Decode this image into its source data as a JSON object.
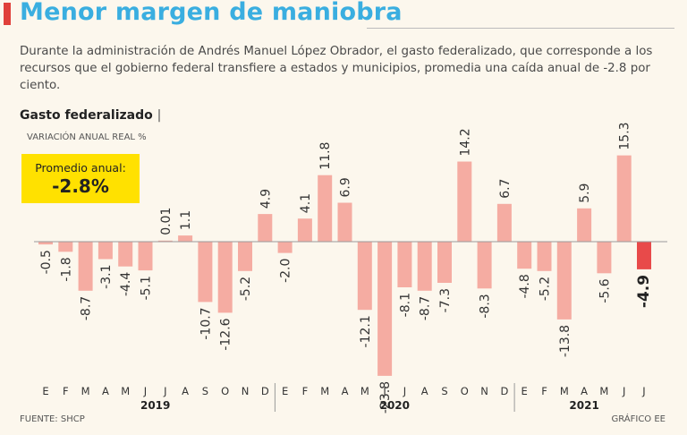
{
  "header": {
    "title": "Menor margen de maniobra",
    "description": "Durante la administración de Andrés Manuel López Obrador, el gasto federalizado, que corresponde a los recursos que el gobierno federal transfiere a estados y municipios, promedia una caída anual de -2.8 por ciento."
  },
  "chart_header": {
    "title": "Gasto federalizado",
    "separator": "|",
    "units": "VARIACIÓN ANUAL REAL %"
  },
  "average": {
    "label": "Promedio anual:",
    "value": "-2.8%"
  },
  "footer": {
    "source": "FUENTE: SHCP",
    "credit": "GRÁFICO EE"
  },
  "colors": {
    "bar": "#f5aca2",
    "highlight": "#e84a4a",
    "title": "#3aaee0",
    "box": "#ffe100"
  },
  "chart_data": {
    "type": "bar",
    "title": "Gasto federalizado",
    "ylabel": "VARIACIÓN ANUAL REAL %",
    "xlabel": "",
    "ylim": [
      -26,
      17
    ],
    "categories": [
      "E",
      "F",
      "M",
      "A",
      "M",
      "J",
      "J",
      "A",
      "S",
      "O",
      "N",
      "D",
      "E",
      "F",
      "M",
      "A",
      "M",
      "J",
      "J",
      "A",
      "S",
      "O",
      "N",
      "D",
      "E",
      "F",
      "M",
      "A",
      "M",
      "J",
      "J"
    ],
    "values": [
      -0.5,
      -1.8,
      -8.7,
      -3.1,
      -4.4,
      -5.1,
      0.01,
      1.1,
      -10.7,
      -12.6,
      -5.2,
      4.9,
      -2.0,
      4.1,
      11.8,
      6.9,
      -12.1,
      -23.8,
      -8.1,
      -8.7,
      -7.3,
      14.2,
      -8.3,
      6.7,
      -4.8,
      -5.2,
      -13.8,
      5.9,
      -5.6,
      15.3,
      -4.9
    ],
    "value_labels": [
      "-0.5",
      "-1.8",
      "-8.7",
      "-3.1",
      "-4.4",
      "-5.1",
      "0.01",
      "1.1",
      "-10.7",
      "-12.6",
      "-5.2",
      "4.9",
      "-2.0",
      "4.1",
      "11.8",
      "6.9",
      "-12.1",
      "-23.8",
      "-8.1",
      "-8.7",
      "-7.3",
      "14.2",
      "-8.3",
      "6.7",
      "-4.8",
      "-5.2",
      "-13.8",
      "5.9",
      "-5.6",
      "15.3",
      "-4.9"
    ],
    "highlight_index": 30,
    "years": [
      {
        "label": "2019",
        "start": 0,
        "end": 11
      },
      {
        "label": "2020",
        "start": 12,
        "end": 23
      },
      {
        "label": "2021",
        "start": 24,
        "end": 30
      }
    ]
  }
}
